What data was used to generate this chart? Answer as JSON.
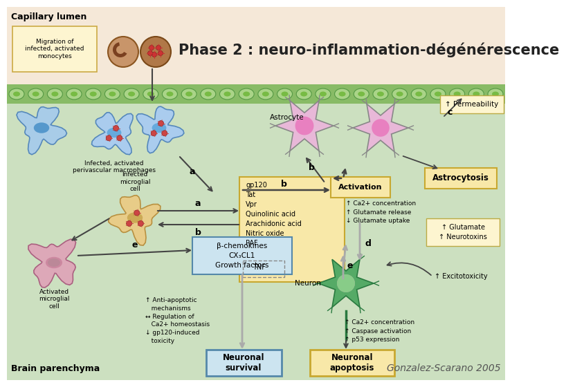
{
  "title": "Phase 2 : neuro-inflammation-dégénérescence",
  "citation": "Gonzalez-Scarano 2005",
  "bg_top": "#f5e8d8",
  "bg_bottom": "#cce0c0",
  "barrier_color": "#88bb66",
  "barrier_cell_color": "#aad488",
  "barrier_cell_inner": "#77bb44",
  "title_fontsize": 15,
  "citation_fontsize": 10,
  "capillary_label": "Capillary lumen",
  "brain_label": "Brain parenchyma",
  "migration_box_text": "Migration of\ninfected, activated\nmonocytes",
  "macrophage_label": "Infected, activated\nperivascular macrophages",
  "microglial_label": "Infected\nmicroglial\ncell",
  "activated_microglial_label": "Activated\nmicroglial\ncell",
  "astrocyte_label": "Astrocyte",
  "neuron_label": "Neuron",
  "astrocytosis_label": "Astrocytosis",
  "permeability_label": "↑ Permeability",
  "activation_label": "Activation",
  "gp120_box": "gp120\nTat\nVpr\nQuinolinic acid\nArachidonic acid\nNitric oxide\nPAF\n┌TNF┐",
  "chemokine_box": "β-chemokines\nCX₃CL1\nGrowth factors",
  "neuronal_survival_box": "Neuronal\nsurvival",
  "neuronal_apoptosis_box": "Neuronal\napoptosis",
  "astrocyte_effects": "↑ Ca2+ concentration\n↑ Glutamate release\n↓ Glutamate uptake",
  "glutamate_box": "↑ Glutamate\n↑ Neurotoxins",
  "excitotoxicity": "↑ Excitotoxicity",
  "neuron_effects": "↑ Ca2+ concentration\n↑ Caspase activation\n↑ p53 expression",
  "antiapoptotic": "↑ Anti-apoptotic\n   mechanisms\n↔ Regulation of\n   Ca2+ homeostasis\n↓ gp120-induced\n   toxicity"
}
